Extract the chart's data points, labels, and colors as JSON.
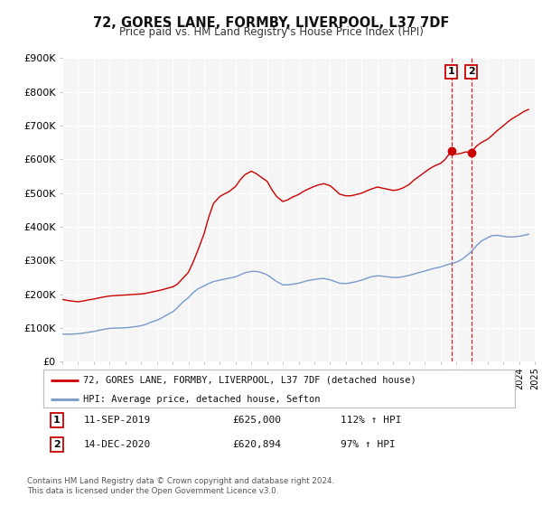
{
  "title": "72, GORES LANE, FORMBY, LIVERPOOL, L37 7DF",
  "subtitle": "Price paid vs. HM Land Registry's House Price Index (HPI)",
  "ylim": [
    0,
    900000
  ],
  "xlim_start": 1995,
  "xlim_end": 2025,
  "ytick_labels": [
    "£0",
    "£100K",
    "£200K",
    "£300K",
    "£400K",
    "£500K",
    "£600K",
    "£700K",
    "£800K",
    "£900K"
  ],
  "ytick_values": [
    0,
    100000,
    200000,
    300000,
    400000,
    500000,
    600000,
    700000,
    800000,
    900000
  ],
  "background_color": "#ffffff",
  "plot_bg_color": "#f5f5f5",
  "grid_color": "#ffffff",
  "legend_label_red": "72, GORES LANE, FORMBY, LIVERPOOL, L37 7DF (detached house)",
  "legend_label_blue": "HPI: Average price, detached house, Sefton",
  "marker1_x": 2019.7,
  "marker1_y": 625000,
  "marker2_x": 2020.95,
  "marker2_y": 620894,
  "vline1_x": 2019.7,
  "vline2_x": 2020.95,
  "annotation1_date": "11-SEP-2019",
  "annotation1_price": "£625,000",
  "annotation1_hpi": "112% ↑ HPI",
  "annotation2_date": "14-DEC-2020",
  "annotation2_price": "£620,894",
  "annotation2_hpi": "97% ↑ HPI",
  "footer1": "Contains HM Land Registry data © Crown copyright and database right 2024.",
  "footer2": "This data is licensed under the Open Government Licence v3.0.",
  "red_line_color": "#cc0000",
  "blue_line_color": "#7799cc",
  "vline_color": "#cc0000",
  "red_x": [
    1995.0,
    1995.3,
    1995.6,
    1996.0,
    1996.3,
    1996.6,
    1997.0,
    1997.3,
    1997.6,
    1998.0,
    1998.3,
    1998.6,
    1999.0,
    1999.3,
    1999.6,
    2000.0,
    2000.3,
    2000.6,
    2001.0,
    2001.3,
    2001.6,
    2002.0,
    2002.3,
    2002.6,
    2003.0,
    2003.3,
    2003.6,
    2004.0,
    2004.3,
    2004.6,
    2005.0,
    2005.3,
    2005.6,
    2006.0,
    2006.3,
    2006.6,
    2007.0,
    2007.3,
    2007.6,
    2008.0,
    2008.3,
    2008.6,
    2009.0,
    2009.3,
    2009.6,
    2010.0,
    2010.3,
    2010.6,
    2011.0,
    2011.3,
    2011.6,
    2012.0,
    2012.3,
    2012.6,
    2013.0,
    2013.3,
    2013.6,
    2014.0,
    2014.3,
    2014.6,
    2015.0,
    2015.3,
    2015.6,
    2016.0,
    2016.3,
    2016.6,
    2017.0,
    2017.3,
    2017.6,
    2018.0,
    2018.3,
    2018.6,
    2019.0,
    2019.3,
    2019.7,
    2020.0,
    2020.3,
    2020.6,
    2020.95,
    2021.3,
    2021.6,
    2022.0,
    2022.3,
    2022.6,
    2023.0,
    2023.3,
    2023.6,
    2024.0,
    2024.3,
    2024.6
  ],
  "red_y": [
    185000,
    182000,
    180000,
    178000,
    180000,
    183000,
    186000,
    189000,
    192000,
    195000,
    196000,
    197000,
    198000,
    199000,
    200000,
    201000,
    203000,
    206000,
    210000,
    213000,
    217000,
    222000,
    230000,
    245000,
    265000,
    295000,
    330000,
    380000,
    430000,
    470000,
    490000,
    498000,
    505000,
    520000,
    540000,
    555000,
    565000,
    558000,
    548000,
    535000,
    510000,
    490000,
    475000,
    480000,
    488000,
    496000,
    505000,
    512000,
    520000,
    525000,
    528000,
    522000,
    510000,
    497000,
    492000,
    492000,
    495000,
    500000,
    506000,
    512000,
    518000,
    515000,
    512000,
    508000,
    510000,
    515000,
    525000,
    538000,
    548000,
    562000,
    572000,
    580000,
    588000,
    600000,
    625000,
    615000,
    618000,
    622000,
    620894,
    640000,
    650000,
    660000,
    672000,
    685000,
    700000,
    712000,
    722000,
    733000,
    742000,
    748000
  ],
  "blue_x": [
    1995.0,
    1995.3,
    1995.6,
    1996.0,
    1996.3,
    1996.6,
    1997.0,
    1997.3,
    1997.6,
    1998.0,
    1998.3,
    1998.6,
    1999.0,
    1999.3,
    1999.6,
    2000.0,
    2000.3,
    2000.6,
    2001.0,
    2001.3,
    2001.6,
    2002.0,
    2002.3,
    2002.6,
    2003.0,
    2003.3,
    2003.6,
    2004.0,
    2004.3,
    2004.6,
    2005.0,
    2005.3,
    2005.6,
    2006.0,
    2006.3,
    2006.6,
    2007.0,
    2007.3,
    2007.6,
    2008.0,
    2008.3,
    2008.6,
    2009.0,
    2009.3,
    2009.6,
    2010.0,
    2010.3,
    2010.6,
    2011.0,
    2011.3,
    2011.6,
    2012.0,
    2012.3,
    2012.6,
    2013.0,
    2013.3,
    2013.6,
    2014.0,
    2014.3,
    2014.6,
    2015.0,
    2015.3,
    2015.6,
    2016.0,
    2016.3,
    2016.6,
    2017.0,
    2017.3,
    2017.6,
    2018.0,
    2018.3,
    2018.6,
    2019.0,
    2019.3,
    2019.6,
    2020.0,
    2020.3,
    2020.6,
    2021.0,
    2021.3,
    2021.6,
    2022.0,
    2022.3,
    2022.6,
    2023.0,
    2023.3,
    2023.6,
    2024.0,
    2024.3,
    2024.6
  ],
  "blue_y": [
    82000,
    82000,
    82000,
    83000,
    85000,
    87000,
    90000,
    93000,
    96000,
    99000,
    100000,
    100000,
    101000,
    102000,
    104000,
    107000,
    111000,
    117000,
    123000,
    130000,
    138000,
    148000,
    160000,
    175000,
    190000,
    205000,
    216000,
    225000,
    232000,
    238000,
    242000,
    245000,
    248000,
    252000,
    258000,
    264000,
    268000,
    268000,
    265000,
    258000,
    248000,
    238000,
    228000,
    228000,
    230000,
    233000,
    237000,
    241000,
    244000,
    246000,
    247000,
    243000,
    238000,
    233000,
    232000,
    234000,
    237000,
    242000,
    247000,
    252000,
    255000,
    254000,
    252000,
    250000,
    250000,
    252000,
    256000,
    260000,
    264000,
    269000,
    273000,
    277000,
    281000,
    286000,
    290000,
    295000,
    302000,
    312000,
    328000,
    345000,
    358000,
    368000,
    374000,
    375000,
    372000,
    370000,
    370000,
    372000,
    375000,
    378000
  ]
}
